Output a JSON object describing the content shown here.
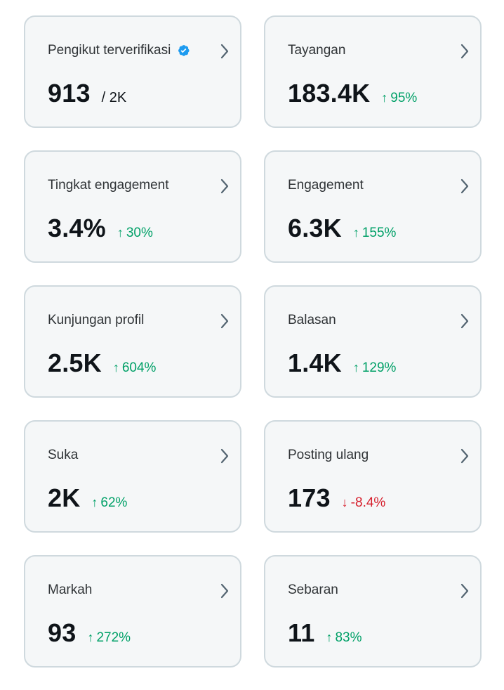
{
  "cards": [
    {
      "title": "Pengikut terverifikasi",
      "value": "913",
      "sub": "/ 2K",
      "verified": true
    },
    {
      "title": "Tayangan",
      "value": "183.4K",
      "change": "95%",
      "direction": "up"
    },
    {
      "title": "Tingkat engagement",
      "value": "3.4%",
      "change": "30%",
      "direction": "up"
    },
    {
      "title": "Engagement",
      "value": "6.3K",
      "change": "155%",
      "direction": "up"
    },
    {
      "title": "Kunjungan profil",
      "value": "2.5K",
      "change": "604%",
      "direction": "up"
    },
    {
      "title": "Balasan",
      "value": "1.4K",
      "change": "129%",
      "direction": "up"
    },
    {
      "title": "Suka",
      "value": "2K",
      "change": "62%",
      "direction": "up"
    },
    {
      "title": "Posting ulang",
      "value": "173",
      "change": "-8.4%",
      "direction": "down"
    },
    {
      "title": "Markah",
      "value": "93",
      "change": "272%",
      "direction": "up"
    },
    {
      "title": "Sebaran",
      "value": "11",
      "change": "83%",
      "direction": "up"
    }
  ],
  "icons": {
    "arrow_up": "↑",
    "arrow_down": "↓",
    "chevron": "chevron-right-icon",
    "verified": "verified-badge-icon"
  },
  "colors": {
    "positive": "#00a067",
    "negative": "#d61f2c",
    "verified": "#1d9bf0",
    "chevron": "#536471"
  }
}
